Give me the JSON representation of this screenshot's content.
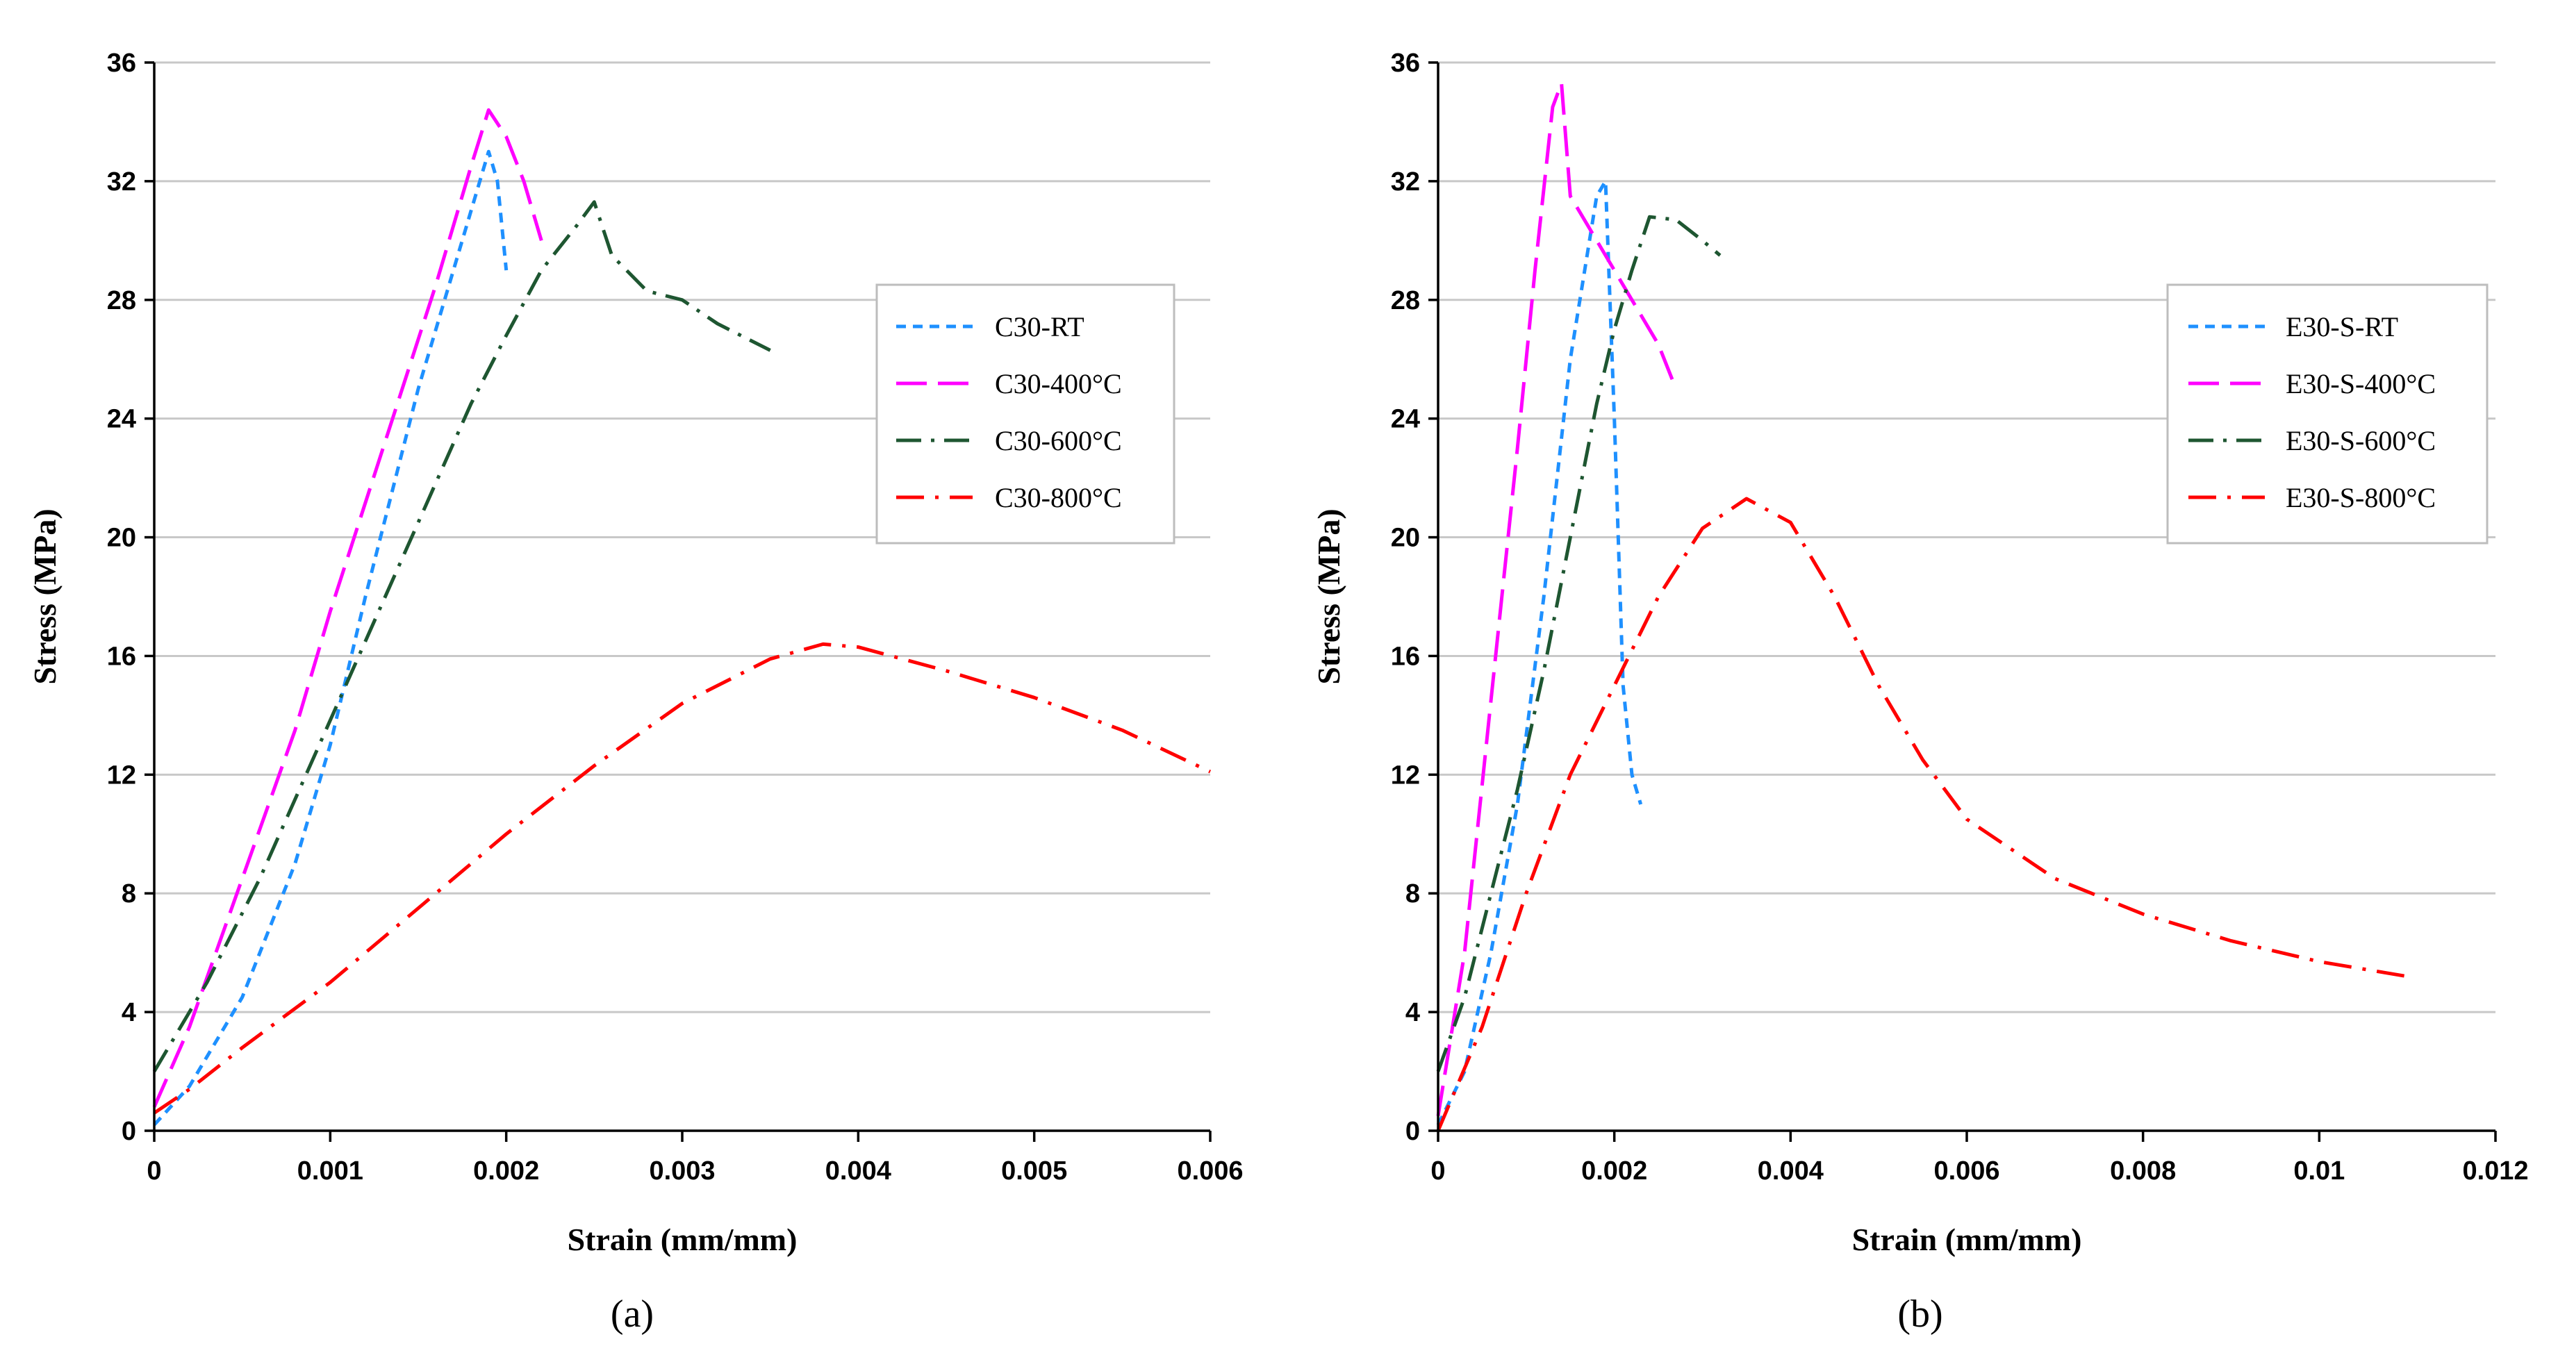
{
  "chart_data": [
    {
      "type": "line",
      "panel": "a",
      "caption": "(a)",
      "xlabel": "Strain (mm/mm)",
      "ylabel": "Stress (MPa)",
      "xlim": [
        0,
        0.006
      ],
      "ylim": [
        0,
        36
      ],
      "xticks": [
        0,
        0.001,
        0.002,
        0.003,
        0.004,
        0.005,
        0.006
      ],
      "xtick_labels": [
        "0",
        "0.001",
        "0.002",
        "0.003",
        "0.004",
        "0.005",
        "0.006"
      ],
      "yticks": [
        0,
        4,
        8,
        12,
        16,
        20,
        24,
        28,
        32,
        36
      ],
      "ytick_labels": [
        "0",
        "4",
        "8",
        "12",
        "16",
        "20",
        "24",
        "28",
        "32",
        "36"
      ],
      "grid": true,
      "legend_position": "right",
      "series": [
        {
          "name": "C30-RT",
          "color": "#1E90FF",
          "dash": "short-dash",
          "x": [
            0,
            0.0002,
            0.0005,
            0.0008,
            0.001,
            0.0012,
            0.0015,
            0.0018,
            0.0019,
            0.00195,
            0.002
          ],
          "y": [
            0.2,
            1.5,
            4.5,
            9,
            13,
            18,
            25,
            31,
            33,
            32,
            29
          ]
        },
        {
          "name": "C30-400°C",
          "color": "#FF00FF",
          "dash": "long-dash",
          "x": [
            0,
            0.0002,
            0.0005,
            0.0008,
            0.001,
            0.0013,
            0.0016,
            0.0018,
            0.0019,
            0.002,
            0.0021,
            0.0022
          ],
          "y": [
            0.8,
            3.5,
            8.5,
            13.5,
            17.5,
            23,
            28.5,
            32.5,
            34.4,
            33.5,
            32,
            30
          ]
        },
        {
          "name": "C30-600°C",
          "color": "#1E5631",
          "dash": "dash-dot",
          "x": [
            0,
            0.0003,
            0.0006,
            0.0009,
            0.0012,
            0.0015,
            0.0018,
            0.002,
            0.0022,
            0.0024,
            0.0025,
            0.0026,
            0.0028,
            0.003,
            0.0032,
            0.0035
          ],
          "y": [
            2,
            5,
            8.5,
            12.5,
            16.5,
            20.5,
            24.5,
            26.8,
            29,
            30.5,
            31.3,
            29.5,
            28.3,
            28,
            27.2,
            26.3
          ]
        },
        {
          "name": "C30-800°C",
          "color": "#FF0000",
          "dash": "long-dash-dot",
          "x": [
            0,
            0.0002,
            0.0005,
            0.001,
            0.0015,
            0.002,
            0.0025,
            0.003,
            0.0035,
            0.0038,
            0.004,
            0.0045,
            0.005,
            0.0055,
            0.006
          ],
          "y": [
            0.6,
            1.4,
            2.8,
            5,
            7.5,
            10,
            12.3,
            14.4,
            15.9,
            16.4,
            16.3,
            15.5,
            14.6,
            13.5,
            12.1
          ]
        }
      ]
    },
    {
      "type": "line",
      "panel": "b",
      "caption": "(b)",
      "xlabel": "Strain (mm/mm)",
      "ylabel": "Stress (MPa)",
      "xlim": [
        0,
        0.012
      ],
      "ylim": [
        0,
        36
      ],
      "xticks": [
        0,
        0.002,
        0.004,
        0.006,
        0.008,
        0.01,
        0.012
      ],
      "xtick_labels": [
        "0",
        "0.002",
        "0.004",
        "0.006",
        "0.008",
        "0.01",
        "0.012"
      ],
      "yticks": [
        0,
        4,
        8,
        12,
        16,
        20,
        24,
        28,
        32,
        36
      ],
      "ytick_labels": [
        "0",
        "4",
        "8",
        "12",
        "16",
        "20",
        "24",
        "28",
        "32",
        "36"
      ],
      "grid": true,
      "legend_position": "right",
      "series": [
        {
          "name": "E30-S-RT",
          "color": "#1E90FF",
          "dash": "short-dash",
          "x": [
            0,
            0.0003,
            0.0006,
            0.0009,
            0.0012,
            0.0015,
            0.0018,
            0.0019,
            0.002,
            0.0021,
            0.0022,
            0.0023
          ],
          "y": [
            0.2,
            2,
            6,
            11,
            18,
            26,
            31.5,
            32,
            24,
            15,
            12,
            11
          ]
        },
        {
          "name": "E30-S-400°C",
          "color": "#FF00FF",
          "dash": "long-dash",
          "x": [
            0,
            0.0003,
            0.0006,
            0.0009,
            0.0011,
            0.0013,
            0.0014,
            0.0015,
            0.0018,
            0.002,
            0.0022,
            0.0025,
            0.0027
          ],
          "y": [
            0.5,
            6,
            14.5,
            23,
            29,
            34.5,
            35.3,
            31.5,
            30,
            29,
            28,
            26.5,
            25
          ]
        },
        {
          "name": "E30-S-600°C",
          "color": "#1E5631",
          "dash": "dash-dot",
          "x": [
            0,
            0.0003,
            0.0006,
            0.0009,
            0.0012,
            0.0015,
            0.0018,
            0.002,
            0.0022,
            0.0024,
            0.0027,
            0.003,
            0.0032
          ],
          "y": [
            2,
            4.5,
            8,
            11.5,
            15.5,
            20,
            24.5,
            27,
            29,
            30.8,
            30.7,
            30,
            29.5
          ]
        },
        {
          "name": "E30-S-800°C",
          "color": "#FF0000",
          "dash": "long-dash-dot",
          "x": [
            0,
            0.0005,
            0.001,
            0.0015,
            0.002,
            0.0025,
            0.003,
            0.0035,
            0.004,
            0.0045,
            0.005,
            0.0055,
            0.006,
            0.007,
            0.008,
            0.009,
            0.01,
            0.011
          ],
          "y": [
            0,
            3.5,
            8,
            12,
            15,
            18,
            20.3,
            21.3,
            20.5,
            18,
            15,
            12.5,
            10.5,
            8.5,
            7.3,
            6.4,
            5.7,
            5.2
          ]
        }
      ]
    }
  ]
}
